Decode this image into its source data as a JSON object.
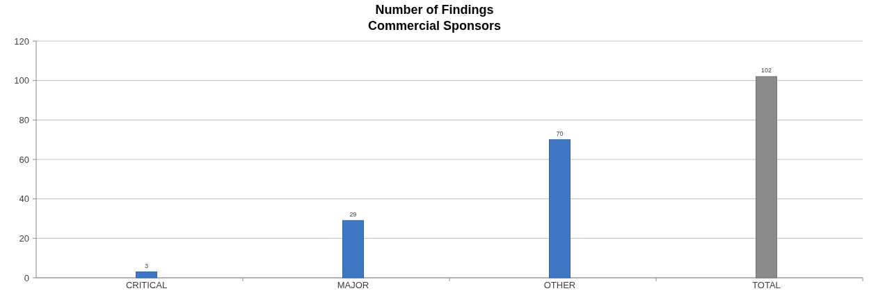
{
  "chart_data": {
    "type": "bar",
    "title": "Number of Findings",
    "subtitle": "Commercial Sponsors",
    "categories": [
      "CRITICAL",
      "MAJOR",
      "OTHER",
      "TOTAL"
    ],
    "values": [
      3,
      29,
      70,
      102
    ],
    "colors": [
      "#3f77c4",
      "#3f77c4",
      "#3f77c4",
      "#8a8a8a"
    ],
    "ylim": [
      0,
      120
    ],
    "yticks": [
      0,
      20,
      40,
      60,
      80,
      100,
      120
    ],
    "grid": "y",
    "data_labels": true
  }
}
